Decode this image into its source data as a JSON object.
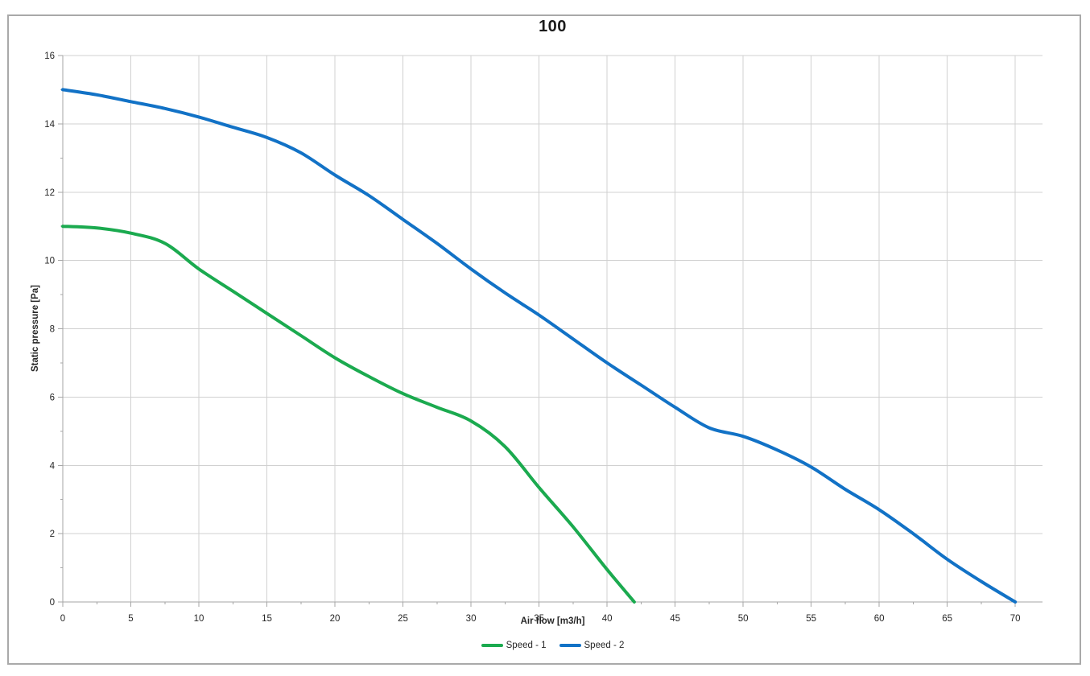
{
  "chart_data": {
    "type": "line",
    "title": "100",
    "xlabel": "Air flow [m3/h]",
    "ylabel": "Static pressure [Pa]",
    "xlim": [
      0,
      72
    ],
    "ylim": [
      0,
      16
    ],
    "x_major_ticks": [
      0,
      5,
      10,
      15,
      20,
      25,
      30,
      35,
      40,
      45,
      50,
      55,
      60,
      65,
      70
    ],
    "x_minor_step": 2.5,
    "y_major_ticks": [
      0,
      2,
      4,
      6,
      8,
      10,
      12,
      14,
      16
    ],
    "y_minor_step": 1,
    "grid": true,
    "legend_position": "bottom-center",
    "colors": {
      "gridline": "#d0d0d0",
      "axis": "#a6a6a6",
      "tick_text": "#262626",
      "frame_border": "#a9a9a9"
    },
    "series": [
      {
        "name": "Speed - 1",
        "color": "#1baa4f",
        "points": [
          [
            0,
            11
          ],
          [
            2.5,
            10.95
          ],
          [
            5,
            10.8
          ],
          [
            7.5,
            10.5
          ],
          [
            10,
            9.75
          ],
          [
            12.5,
            9.1
          ],
          [
            15,
            8.45
          ],
          [
            17.5,
            7.8
          ],
          [
            20,
            7.15
          ],
          [
            22.5,
            6.6
          ],
          [
            25,
            6.1
          ],
          [
            27.5,
            5.7
          ],
          [
            30,
            5.3
          ],
          [
            32.5,
            4.55
          ],
          [
            35,
            3.35
          ],
          [
            37.5,
            2.2
          ],
          [
            40,
            0.95
          ],
          [
            42,
            0
          ]
        ]
      },
      {
        "name": "Speed - 2",
        "color": "#1272c6",
        "points": [
          [
            0,
            15
          ],
          [
            2.5,
            14.85
          ],
          [
            5,
            14.65
          ],
          [
            7.5,
            14.45
          ],
          [
            10,
            14.2
          ],
          [
            12.5,
            13.9
          ],
          [
            15,
            13.6
          ],
          [
            17.5,
            13.15
          ],
          [
            20,
            12.5
          ],
          [
            22.5,
            11.9
          ],
          [
            25,
            11.2
          ],
          [
            27.5,
            10.5
          ],
          [
            30,
            9.75
          ],
          [
            32.5,
            9.05
          ],
          [
            35,
            8.4
          ],
          [
            37.5,
            7.7
          ],
          [
            40,
            7.0
          ],
          [
            42.5,
            6.35
          ],
          [
            45,
            5.7
          ],
          [
            47.5,
            5.1
          ],
          [
            50,
            4.85
          ],
          [
            52.5,
            4.45
          ],
          [
            55,
            3.95
          ],
          [
            57.5,
            3.3
          ],
          [
            60,
            2.7
          ],
          [
            62.5,
            2.0
          ],
          [
            65,
            1.25
          ],
          [
            67.5,
            0.6
          ],
          [
            70,
            0
          ]
        ]
      }
    ]
  }
}
